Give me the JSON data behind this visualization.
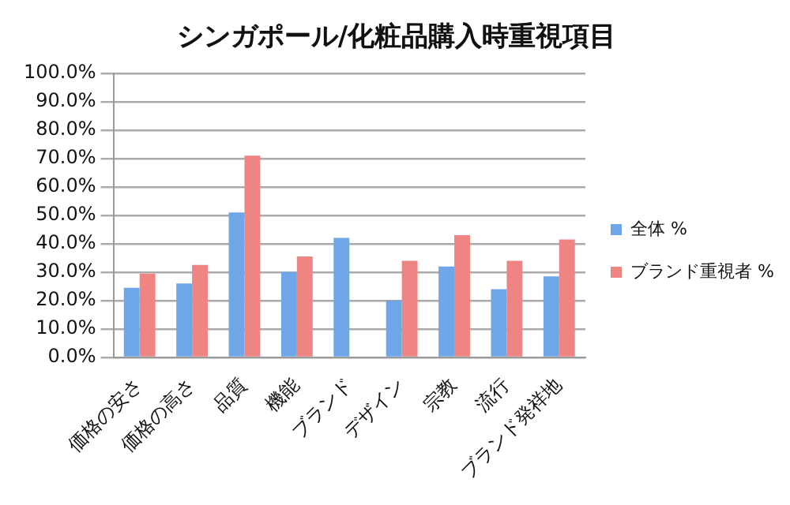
{
  "chart_data": {
    "type": "bar",
    "title": "シンガポール/化粧品購入時重視項目",
    "categories": [
      "価格の安さ",
      "価格の高さ",
      "品質",
      "機能",
      "ブランド",
      "デザイン",
      "宗教",
      "流行",
      "ブランド発祥地"
    ],
    "series": [
      {
        "name": "全体 %",
        "color": "#6fa6e8",
        "values": [
          24.5,
          26,
          51,
          30,
          42,
          20,
          32,
          24,
          28.5
        ]
      },
      {
        "name": "ブランド重視者 %",
        "color": "#ef8583",
        "values": [
          29.5,
          32.5,
          71,
          35.5,
          null,
          34,
          43,
          34,
          41.5
        ]
      }
    ],
    "ylim": [
      0,
      100
    ],
    "yticks": [
      {
        "value": 0,
        "label": "0.0%"
      },
      {
        "value": 10,
        "label": "10.0%"
      },
      {
        "value": 20,
        "label": "20.0%"
      },
      {
        "value": 30,
        "label": "30.0%"
      },
      {
        "value": 40,
        "label": "40.0%"
      },
      {
        "value": 50,
        "label": "50.0%"
      },
      {
        "value": 60,
        "label": "60.0%"
      },
      {
        "value": 70,
        "label": "70.0%"
      },
      {
        "value": 80,
        "label": "80.0%"
      },
      {
        "value": 90,
        "label": "90.0%"
      },
      {
        "value": 100,
        "label": "100.0%"
      }
    ],
    "grid": "y",
    "legend": "right"
  }
}
